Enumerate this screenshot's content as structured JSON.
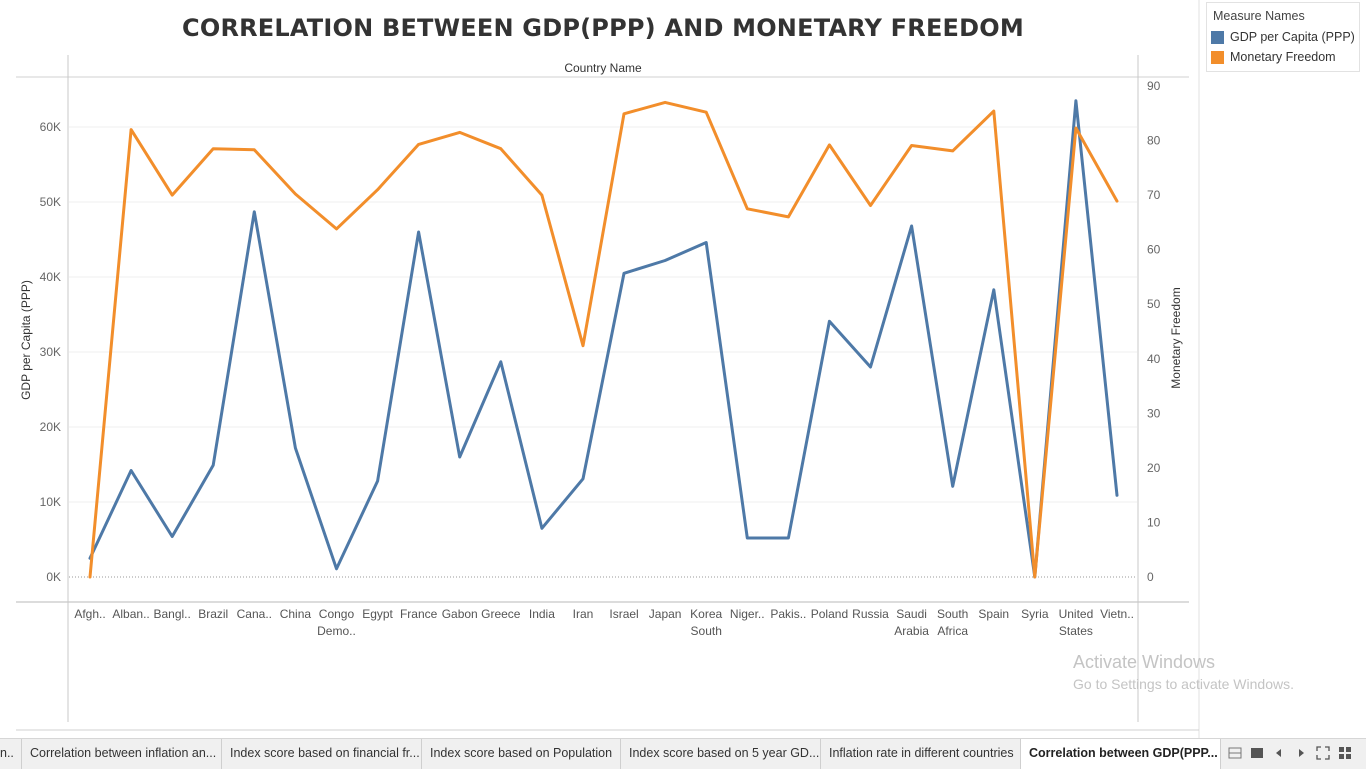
{
  "chart_data": {
    "type": "line",
    "title": "CORRELATION BETWEEN GDP(PPP) AND MONETARY FREEDOM",
    "xlabel": "Country Name",
    "ylabel_left": "GDP per Capita (PPP)",
    "ylabel_right": "Monetary Freedom",
    "categories": [
      [
        "Afgh.."
      ],
      [
        "Alban.."
      ],
      [
        "Bangl.."
      ],
      [
        "Brazil"
      ],
      [
        "Cana.."
      ],
      [
        "China"
      ],
      [
        "Congo",
        "Demo.."
      ],
      [
        "Egypt"
      ],
      [
        "France"
      ],
      [
        "Gabon"
      ],
      [
        "Greece"
      ],
      [
        "India"
      ],
      [
        "Iran"
      ],
      [
        "Israel"
      ],
      [
        "Japan"
      ],
      [
        "Korea",
        "South"
      ],
      [
        "Niger.."
      ],
      [
        "Pakis.."
      ],
      [
        "Poland"
      ],
      [
        "Russia"
      ],
      [
        "Saudi",
        "Arabia"
      ],
      [
        "South",
        "Africa"
      ],
      [
        "Spain"
      ],
      [
        "Syria"
      ],
      [
        "United",
        "States"
      ],
      [
        "Vietn.."
      ]
    ],
    "left_ticks": [
      "0K",
      "10K",
      "20K",
      "30K",
      "40K",
      "50K",
      "60K"
    ],
    "left_ylim": [
      0,
      60000
    ],
    "right_ticks": [
      "0",
      "10",
      "20",
      "30",
      "40",
      "50",
      "60",
      "70",
      "80",
      "90"
    ],
    "right_ylim": [
      0,
      90
    ],
    "series": [
      {
        "name": "GDP per Capita (PPP)",
        "axis": "left",
        "color": "#4e79a7",
        "values": [
          2500,
          14200,
          5400,
          14900,
          48700,
          17200,
          1100,
          12800,
          46000,
          16000,
          28700,
          6500,
          13100,
          40500,
          42200,
          44600,
          5200,
          5200,
          34100,
          28000,
          46800,
          12100,
          38300,
          0,
          63500,
          10900
        ]
      },
      {
        "name": "Monetary Freedom",
        "axis": "right",
        "color": "#f28e2b",
        "values": [
          0,
          82,
          70,
          78.5,
          78.3,
          70.2,
          63.8,
          71,
          79.3,
          81.5,
          78.5,
          70,
          42.4,
          84.9,
          87,
          85.2,
          67.5,
          66,
          79.2,
          68.1,
          79.1,
          78.1,
          85.4,
          0,
          82.3,
          68.9
        ]
      }
    ],
    "legend_title": "Measure Names",
    "legend_placement": "top-right"
  },
  "watermark": {
    "line1": "Activate Windows",
    "line2": "Go to Settings to activate Windows."
  },
  "tabs": [
    {
      "label": "n..",
      "active": false
    },
    {
      "label": "Correlation between inflation an...",
      "active": false
    },
    {
      "label": "Index score based on financial fr...",
      "active": false
    },
    {
      "label": "Index score based on Population",
      "active": false
    },
    {
      "label": "Index score based on 5 year GD...",
      "active": false
    },
    {
      "label": "Inflation rate in different countries",
      "active": false
    },
    {
      "label": "Correlation between GDP(PPP...",
      "active": true
    }
  ],
  "nav_icons": [
    "grid-view-icon",
    "filmstrip-view-icon",
    "previous-sheet-icon",
    "next-sheet-icon",
    "fit-icon",
    "grid-icon"
  ]
}
